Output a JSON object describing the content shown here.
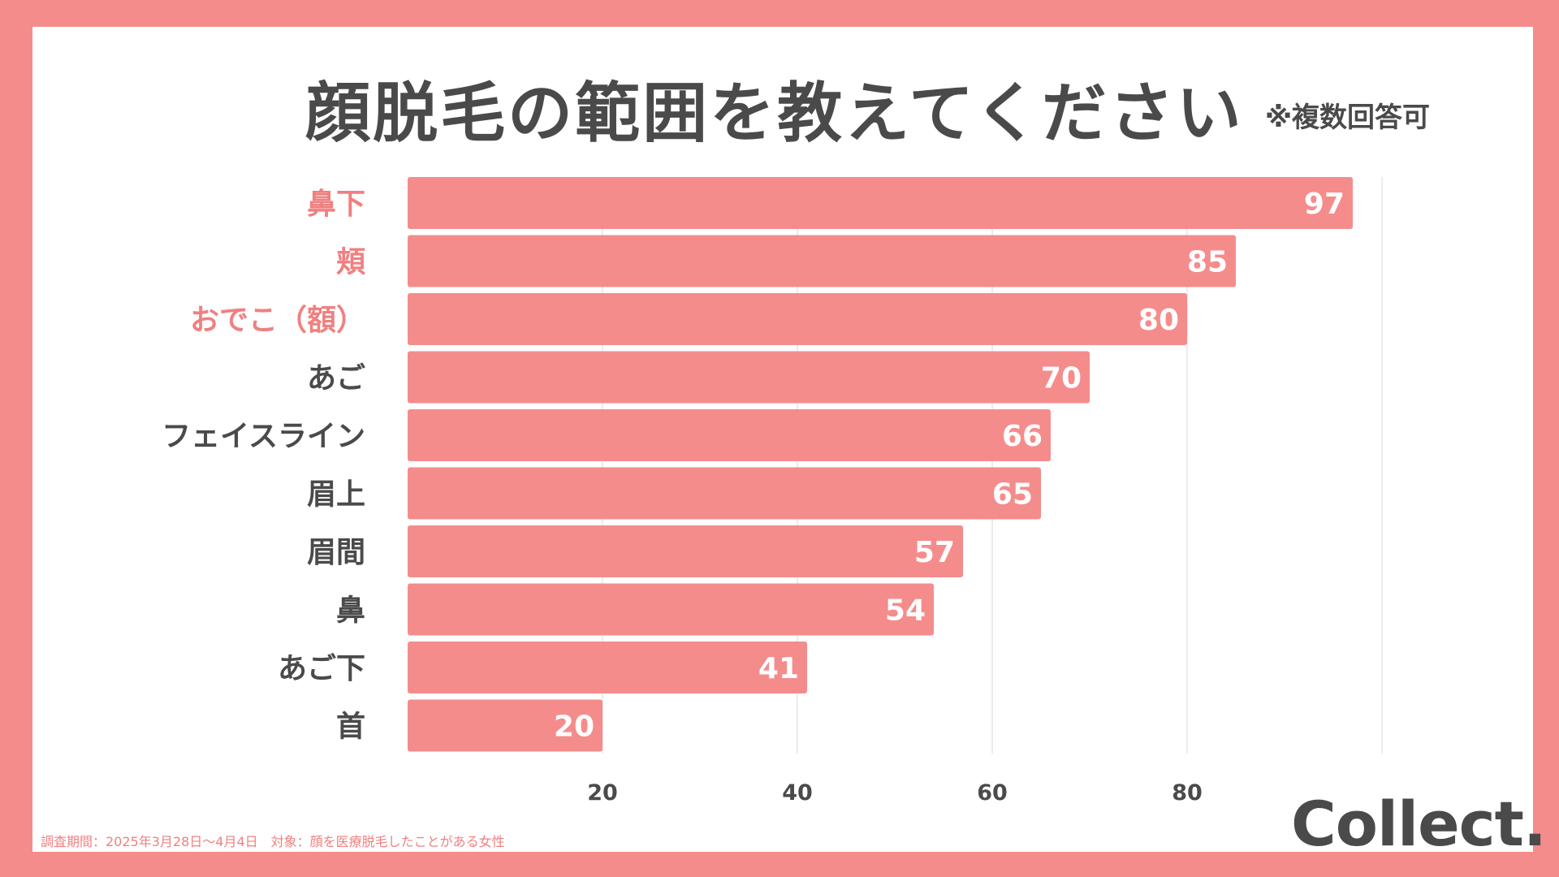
{
  "title": "顔脱毛の範囲を教えてください",
  "note": "※複数回答可",
  "footnote": "調査期間：2025年3月28日〜4月4日　対象：顔を医療脱毛したことがある女性",
  "logo": "Collect.",
  "colors": {
    "bar": "#f58c8c",
    "highlight_label": "#f08080",
    "label": "#4a4a4a",
    "value_label": "#ffffff",
    "grid": "#e6e6e6",
    "frame": "#f58c8c"
  },
  "chart_data": {
    "type": "bar",
    "orientation": "horizontal",
    "title": "顔脱毛の範囲を教えてください",
    "categories": [
      "鼻下",
      "頬",
      "おでこ（額）",
      "あご",
      "フェイスライン",
      "眉上",
      "眉間",
      "鼻",
      "あご下",
      "首"
    ],
    "values": [
      97,
      85,
      80,
      70,
      66,
      65,
      57,
      54,
      41,
      20
    ],
    "highlighted": [
      true,
      true,
      true,
      false,
      false,
      false,
      false,
      false,
      false,
      false
    ],
    "x_ticks": [
      20,
      40,
      60,
      80
    ],
    "xlim": [
      0,
      100
    ],
    "xlabel": "",
    "ylabel": "",
    "grid": true
  }
}
